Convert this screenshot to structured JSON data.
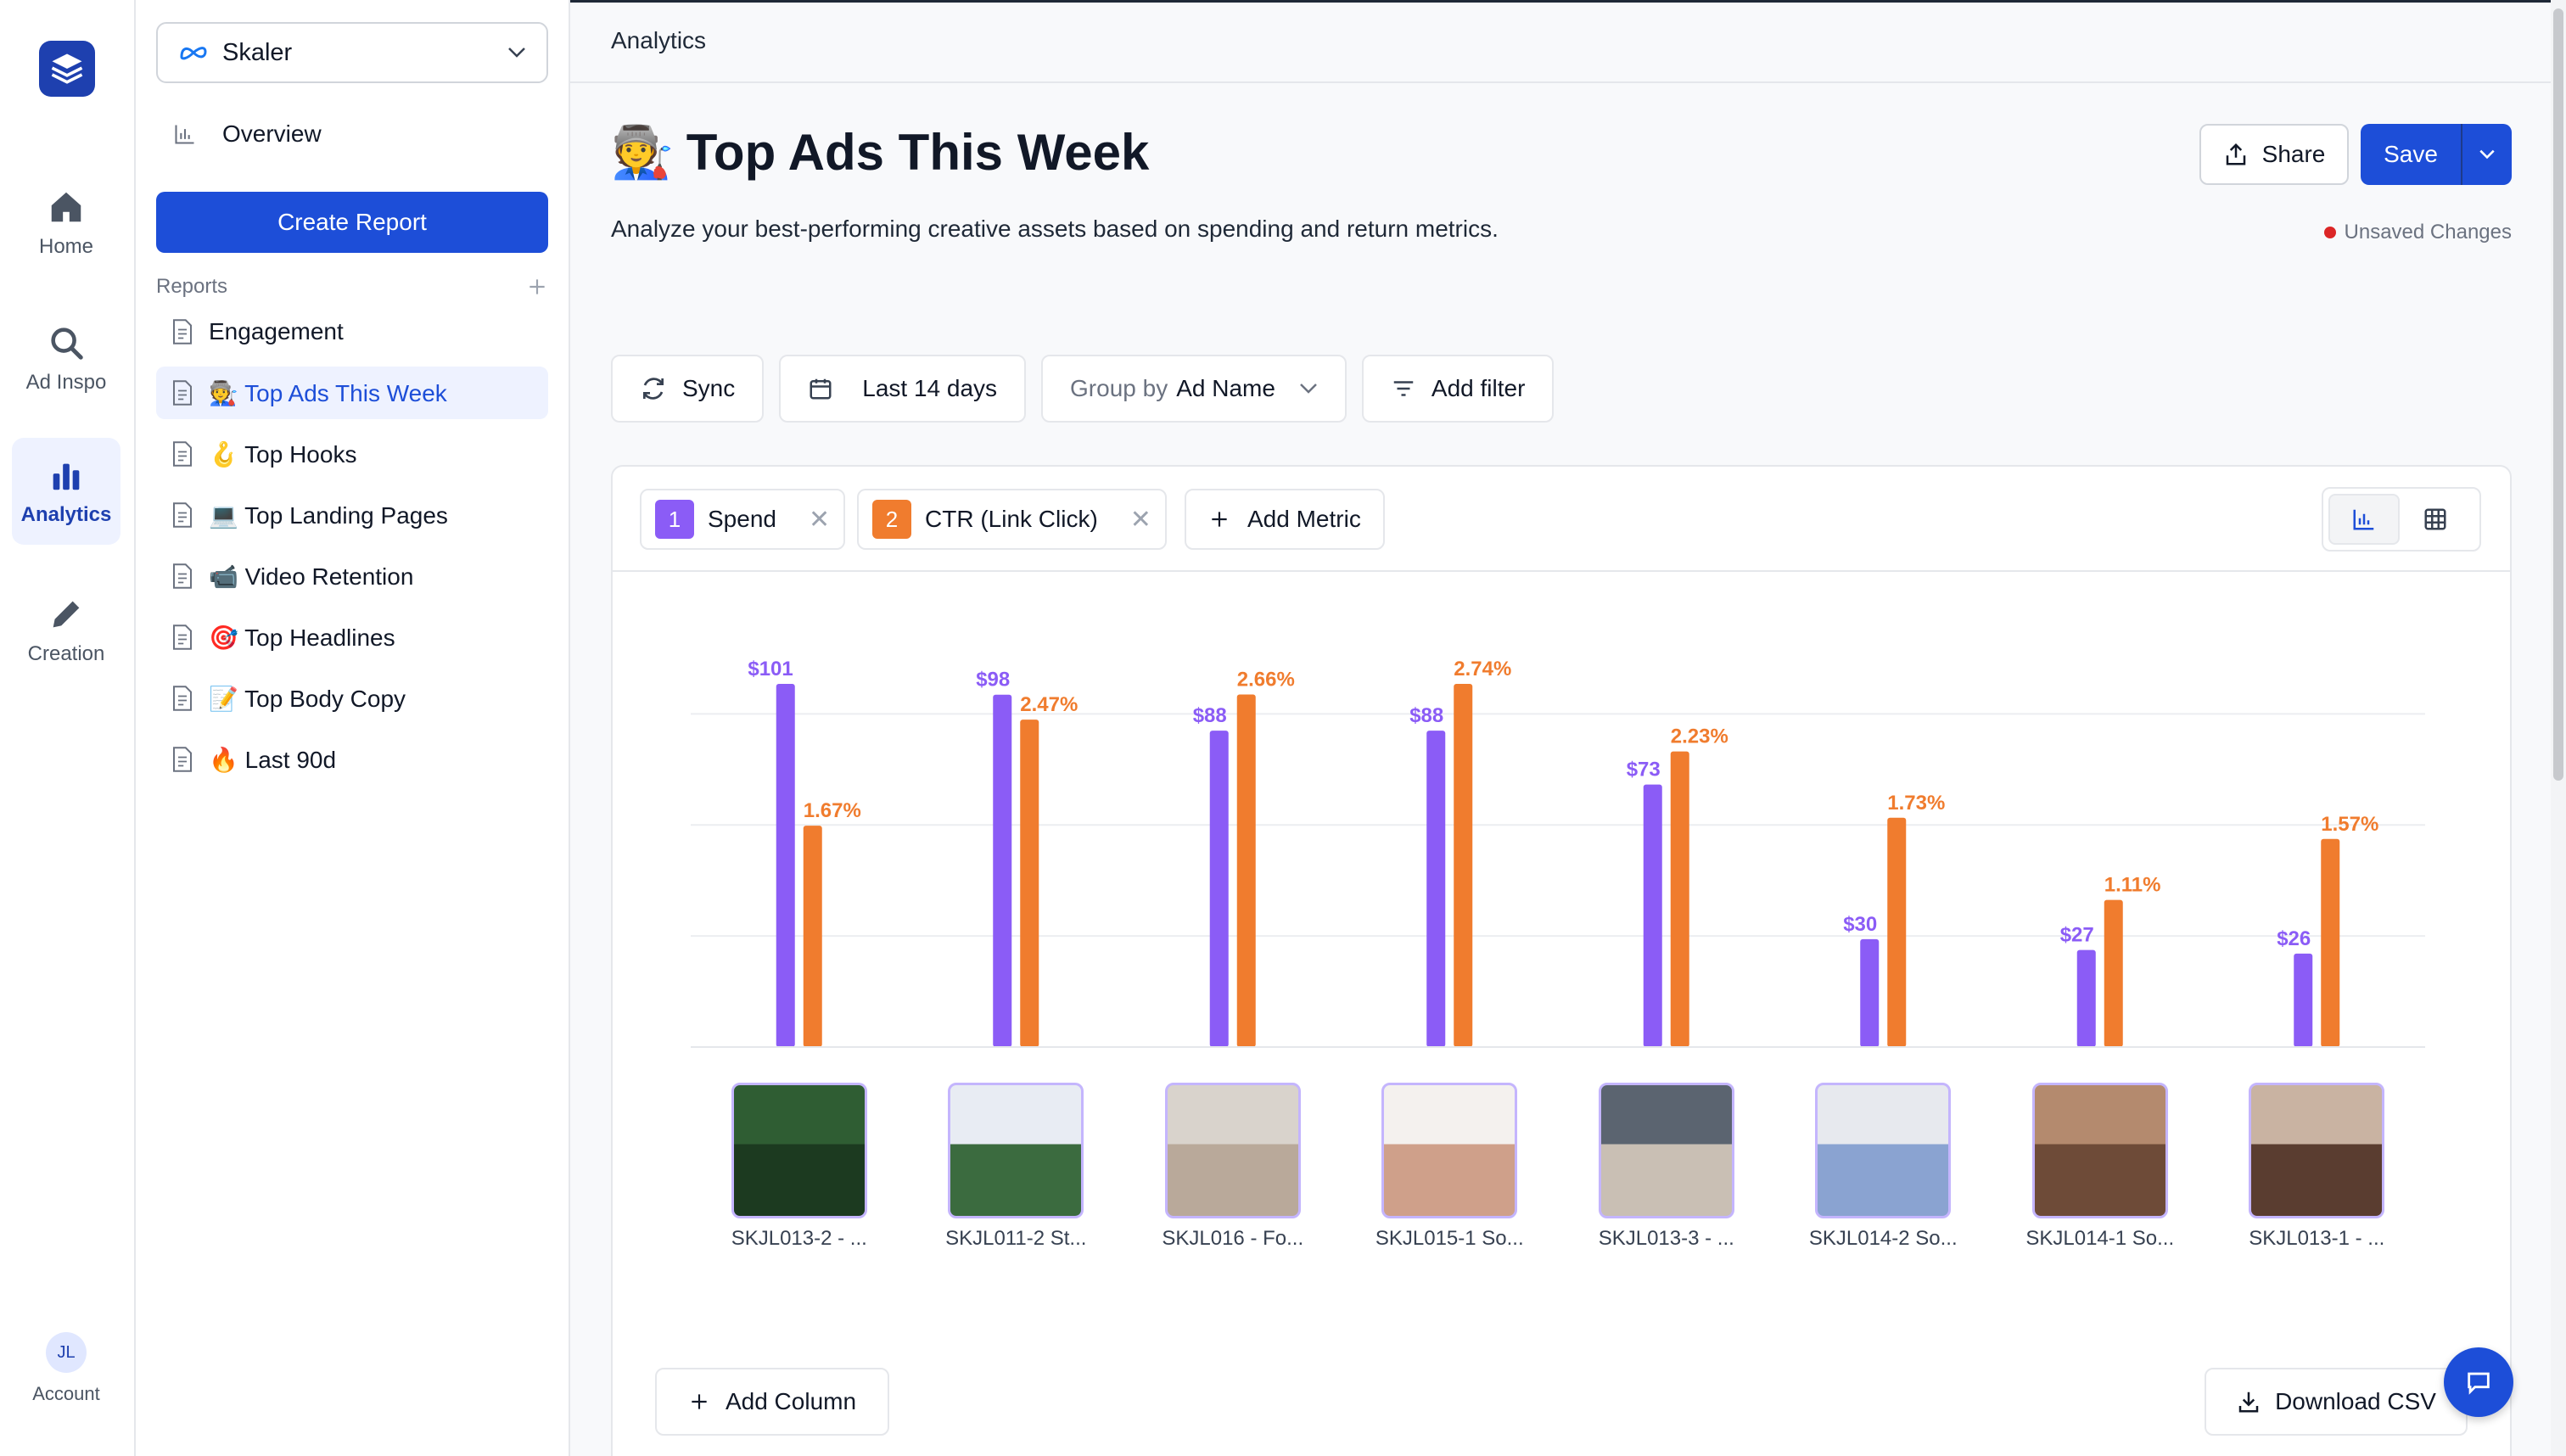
{
  "rail": {
    "items": [
      {
        "label": "Home",
        "icon": "home-icon"
      },
      {
        "label": "Ad Inspo",
        "icon": "search-icon"
      },
      {
        "label": "Analytics",
        "icon": "bar-chart-icon",
        "active": true
      },
      {
        "label": "Creation",
        "icon": "pencil-icon"
      }
    ],
    "account": {
      "initials": "JL",
      "label": "Account"
    }
  },
  "sidebar": {
    "workspace": "Skaler",
    "overview": "Overview",
    "create_report": "Create Report",
    "reports_header": "Reports",
    "reports": [
      {
        "emoji": "",
        "label": "Engagement"
      },
      {
        "emoji": "🧑‍🏭",
        "label": "Top Ads This Week",
        "active": true
      },
      {
        "emoji": "🪝",
        "label": "Top Hooks"
      },
      {
        "emoji": "💻",
        "label": "Top Landing Pages"
      },
      {
        "emoji": "📹",
        "label": "Video Retention"
      },
      {
        "emoji": "🎯",
        "label": "Top Headlines"
      },
      {
        "emoji": "📝",
        "label": "Top Body Copy"
      },
      {
        "emoji": "🔥",
        "label": "Last 90d"
      }
    ]
  },
  "header": {
    "breadcrumb": "Analytics",
    "title_emoji": "🧑‍🏭",
    "title": "Top Ads This Week",
    "description": "Analyze your best-performing creative assets based on spending and return metrics.",
    "share_label": "Share",
    "save_label": "Save",
    "unsaved": "Unsaved Changes"
  },
  "toolbar": {
    "sync": "Sync",
    "date_range": "Last 14 days",
    "group_prefix": "Group by",
    "group_value": "Ad Name",
    "add_filter": "Add filter"
  },
  "metrics": [
    {
      "index": "1",
      "label": "Spend",
      "color": "#8b5cf6"
    },
    {
      "index": "2",
      "label": "CTR (Link Click)",
      "color": "#f07c2e"
    }
  ],
  "add_metric": "Add Metric",
  "chart_data": {
    "type": "bar",
    "title": "",
    "xlabel": "",
    "ylabel": "",
    "categories": [
      "SKJL013-2 - ...",
      "SKJL011-2 St...",
      "SKJL016 - Fo...",
      "SKJL015-1 So...",
      "SKJL013-3 - ...",
      "SKJL014-2 So...",
      "SKJL014-1 So...",
      "SKJL013-1 - ..."
    ],
    "series": [
      {
        "name": "Spend",
        "axis": "left",
        "color": "#8b5cf6",
        "values": [
          101,
          98,
          88,
          88,
          73,
          30,
          27,
          26
        ],
        "labels": [
          "$101",
          "$98",
          "$88",
          "$88",
          "$73",
          "$30",
          "$27",
          "$26"
        ]
      },
      {
        "name": "CTR (Link Click)",
        "axis": "right",
        "color": "#f07c2e",
        "values": [
          1.67,
          2.47,
          2.66,
          2.74,
          2.23,
          1.73,
          1.11,
          1.57
        ],
        "labels": [
          "1.67%",
          "2.47%",
          "2.66%",
          "2.74%",
          "2.23%",
          "1.73%",
          "1.11%",
          "1.57%"
        ]
      }
    ],
    "ylim_left": [
      0,
      101
    ],
    "ylim_right": [
      0,
      2.74
    ],
    "grid": true
  },
  "add_column": "Add Column",
  "download_csv": "Download CSV"
}
